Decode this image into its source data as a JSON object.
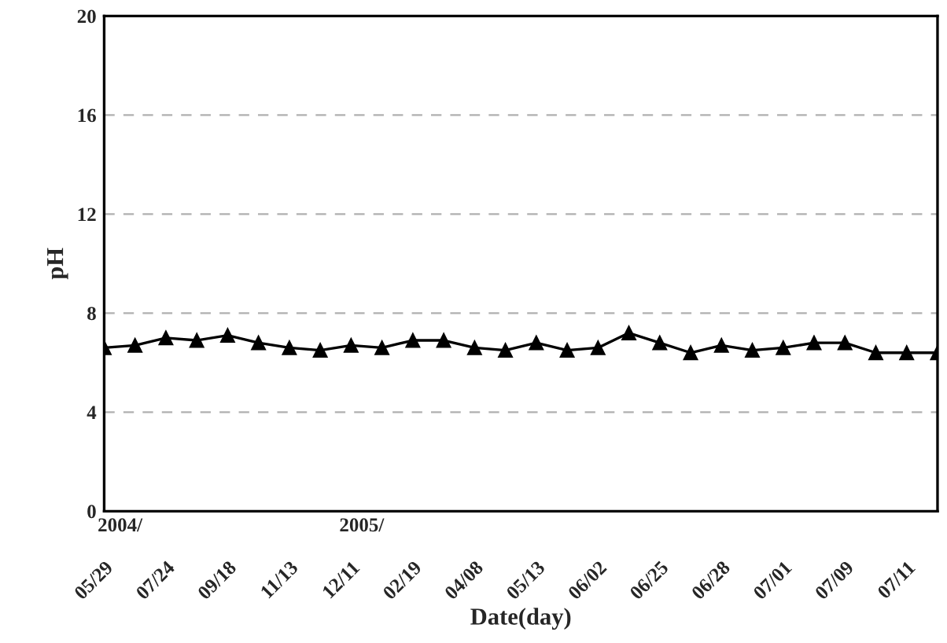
{
  "chart_data": {
    "type": "line",
    "xlabel": "Date(day)",
    "ylabel": "pH",
    "categories": [
      "05/29",
      null,
      "07/24",
      null,
      "09/18",
      null,
      "11/13",
      null,
      "12/11",
      null,
      "02/19",
      null,
      "04/08",
      null,
      "05/13",
      null,
      "06/02",
      null,
      "06/25",
      null,
      "06/28",
      null,
      "07/01",
      null,
      "07/09",
      null,
      "07/11",
      null
    ],
    "series": [
      {
        "color": "#000000",
        "values": [
          6.6,
          6.7,
          7.0,
          6.9,
          7.1,
          6.8,
          6.6,
          6.5,
          6.7,
          6.6,
          6.9,
          6.9,
          6.6,
          6.5,
          6.8,
          6.5,
          6.6,
          7.2,
          6.8,
          6.4,
          6.7,
          6.5,
          6.6,
          6.8,
          6.8,
          6.4,
          6.4,
          6.4
        ]
      }
    ],
    "ylim": [
      0,
      20
    ],
    "yticks": [
      0,
      4,
      8,
      12,
      16,
      20
    ],
    "grid": "y",
    "marker": "triangle",
    "line_style": "solid",
    "annotations": [
      "2004/",
      "2005/"
    ]
  }
}
